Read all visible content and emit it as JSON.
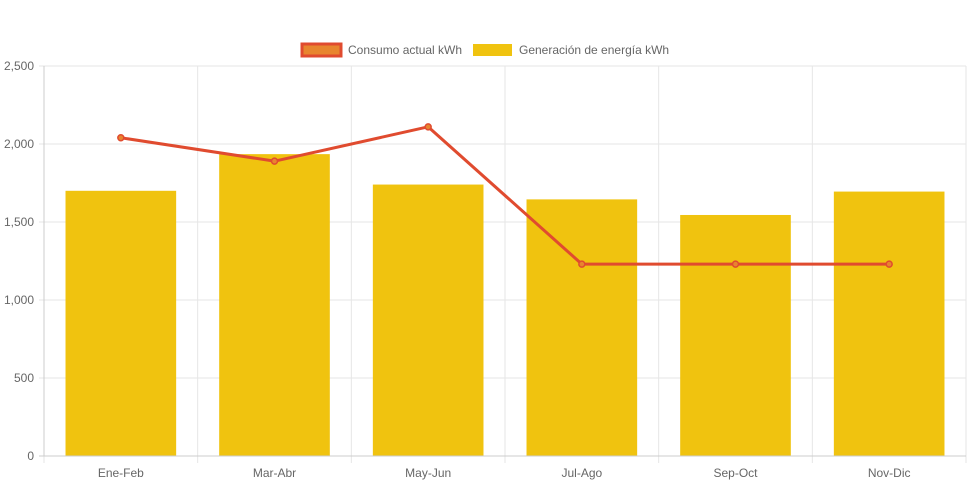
{
  "chart_data": {
    "type": "bar",
    "categories": [
      "Ene-Feb",
      "Mar-Abr",
      "May-Jun",
      "Jul-Ago",
      "Sep-Oct",
      "Nov-Dic"
    ],
    "series": [
      {
        "name": "Consumo actual kWh",
        "type": "line",
        "values": [
          2040,
          1890,
          2110,
          1230,
          1230,
          1230
        ],
        "color": "#e04b2f",
        "point_color": "#e8852e"
      },
      {
        "name": "Generación de energía kWh",
        "type": "bar",
        "values": [
          1700,
          1935,
          1740,
          1645,
          1545,
          1695
        ],
        "color": "#f0c30f"
      }
    ],
    "y_ticks": [
      "0",
      "500",
      "1,000",
      "1,500",
      "2,000",
      "2,500"
    ],
    "ylim": [
      0,
      2500
    ],
    "grid": true,
    "legend_position": "top-center"
  }
}
